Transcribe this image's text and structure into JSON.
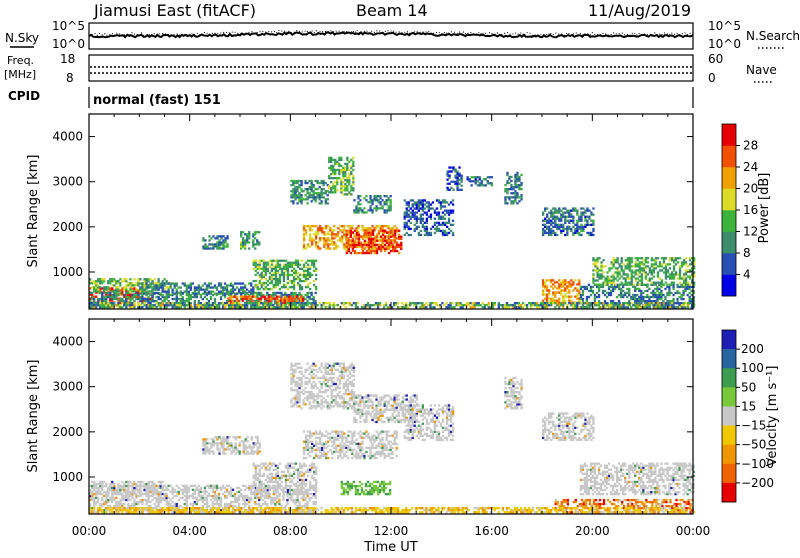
{
  "header": {
    "station": "Jiamusi East (fitACF)",
    "beam": "Beam 14",
    "date": "11/Aug/2019"
  },
  "nsky_panel": {
    "left_label": "N.Sky",
    "right_label": "N.Search",
    "left_ticks": [
      "10^5",
      "10^0"
    ],
    "right_ticks": [
      "10^5",
      "10^0"
    ]
  },
  "freq_panel": {
    "left_label_1": "Freq.",
    "left_label_2": "[MHz]",
    "right_label": "Nave",
    "left_ticks": [
      "18",
      "8"
    ],
    "right_ticks": [
      "60",
      "0"
    ]
  },
  "cpid_panel": {
    "label": "CPID",
    "program": "normal (fast) 151"
  },
  "colors": {
    "power_scale": [
      "#0000e6",
      "#2850b4",
      "#3c8c6e",
      "#3cb43c",
      "#dcdc28",
      "#f0a000",
      "#f05000",
      "#e60000"
    ],
    "velocity_scale": [
      "#1e1eb4",
      "#2864a0",
      "#3c9c50",
      "#78c83c",
      "#c8c8c8",
      "#f0c800",
      "#f09600",
      "#f06400",
      "#e60000"
    ]
  },
  "chart_data": [
    {
      "type": "heatmap",
      "name": "power",
      "ylabel": "Slant Range [km]",
      "yticks": [
        "1000",
        "2000",
        "3000",
        "4000"
      ],
      "ylim": [
        180,
        4500
      ],
      "xlim": [
        0,
        24
      ],
      "colorbar_label": "Power [dB]",
      "colorbar_ticks": [
        "28",
        "24",
        "20",
        "16",
        "12",
        "8",
        "4"
      ],
      "colorbar_range": [
        0,
        32
      ],
      "regions": [
        {
          "t": [
            0,
            2.5
          ],
          "r": [
            300,
            650
          ],
          "level": 28
        },
        {
          "t": [
            0,
            3.2
          ],
          "r": [
            550,
            850
          ],
          "level": 14
        },
        {
          "t": [
            0,
            9.0
          ],
          "r": [
            200,
            520
          ],
          "level": 10
        },
        {
          "t": [
            5.5,
            8.5
          ],
          "r": [
            300,
            450
          ],
          "level": 26
        },
        {
          "t": [
            6.5,
            9.0
          ],
          "r": [
            600,
            1250
          ],
          "level": 13
        },
        {
          "t": [
            2.0,
            6.5
          ],
          "r": [
            500,
            750
          ],
          "level": 9
        },
        {
          "t": [
            8.5,
            12.2
          ],
          "r": [
            1500,
            2000
          ],
          "level": 22
        },
        {
          "t": [
            10.2,
            12.4
          ],
          "r": [
            1400,
            1900
          ],
          "level": 27
        },
        {
          "t": [
            8.0,
            9.5
          ],
          "r": [
            2500,
            3000
          ],
          "level": 11
        },
        {
          "t": [
            9.5,
            10.5
          ],
          "r": [
            2700,
            3550
          ],
          "level": 13
        },
        {
          "t": [
            10.5,
            12.0
          ],
          "r": [
            2300,
            2700
          ],
          "level": 10
        },
        {
          "t": [
            12.5,
            14.5
          ],
          "r": [
            1800,
            2600
          ],
          "level": 7
        },
        {
          "t": [
            14.2,
            14.8
          ],
          "r": [
            2800,
            3300
          ],
          "level": 6
        },
        {
          "t": [
            15.0,
            16.0
          ],
          "r": [
            2900,
            3100
          ],
          "level": 8
        },
        {
          "t": [
            16.5,
            17.2
          ],
          "r": [
            2500,
            3200
          ],
          "level": 9
        },
        {
          "t": [
            18.0,
            20.0
          ],
          "r": [
            1800,
            2400
          ],
          "level": 8
        },
        {
          "t": [
            18.0,
            19.5
          ],
          "r": [
            300,
            800
          ],
          "level": 22
        },
        {
          "t": [
            19.5,
            24.0
          ],
          "r": [
            200,
            700
          ],
          "level": 9
        },
        {
          "t": [
            20.0,
            24.0
          ],
          "r": [
            700,
            1300
          ],
          "level": 13
        },
        {
          "t": [
            4.5,
            5.5
          ],
          "r": [
            1500,
            1800
          ],
          "level": 10
        },
        {
          "t": [
            6.0,
            6.8
          ],
          "r": [
            1500,
            1900
          ],
          "level": 12
        }
      ]
    },
    {
      "type": "heatmap",
      "name": "velocity",
      "ylabel": "Slant Range [km]",
      "yticks": [
        "1000",
        "2000",
        "3000",
        "4000"
      ],
      "ylim": [
        180,
        4500
      ],
      "xlim": [
        0,
        24
      ],
      "xticks": [
        "00:00",
        "04:00",
        "08:00",
        "12:00",
        "16:00",
        "20:00",
        "00:00"
      ],
      "xlabel": "Time UT",
      "colorbar_label": "Velocity [m s⁻¹]",
      "colorbar_ticks": [
        "200",
        "100",
        "50",
        "15",
        "−15",
        "−50",
        "−100",
        "−200"
      ],
      "regions": [
        {
          "t": [
            0,
            9.0
          ],
          "r": [
            200,
            800
          ],
          "v": "ground"
        },
        {
          "t": [
            0,
            3.0
          ],
          "r": [
            600,
            900
          ],
          "v": "ground"
        },
        {
          "t": [
            6.5,
            9.0
          ],
          "r": [
            600,
            1300
          ],
          "v": "ground"
        },
        {
          "t": [
            8.5,
            12.2
          ],
          "r": [
            1400,
            2000
          ],
          "v": "ground"
        },
        {
          "t": [
            8.0,
            10.5
          ],
          "r": [
            2500,
            3500
          ],
          "v": "ground"
        },
        {
          "t": [
            10.5,
            13.0
          ],
          "r": [
            2200,
            2800
          ],
          "v": "ground"
        },
        {
          "t": [
            12.5,
            14.5
          ],
          "r": [
            1800,
            2600
          ],
          "v": "ground"
        },
        {
          "t": [
            16.5,
            17.2
          ],
          "r": [
            2500,
            3200
          ],
          "v": "ground"
        },
        {
          "t": [
            18.0,
            20.0
          ],
          "r": [
            1800,
            2400
          ],
          "v": "ground"
        },
        {
          "t": [
            19.5,
            24.0
          ],
          "r": [
            600,
            1300
          ],
          "v": "ground"
        },
        {
          "t": [
            18.5,
            24.0
          ],
          "r": [
            200,
            500
          ],
          "v": "neg"
        },
        {
          "t": [
            10.0,
            12.0
          ],
          "r": [
            600,
            900
          ],
          "v": "pos"
        },
        {
          "t": [
            4.5,
            6.8
          ],
          "r": [
            1500,
            1900
          ],
          "v": "ground"
        }
      ]
    }
  ]
}
